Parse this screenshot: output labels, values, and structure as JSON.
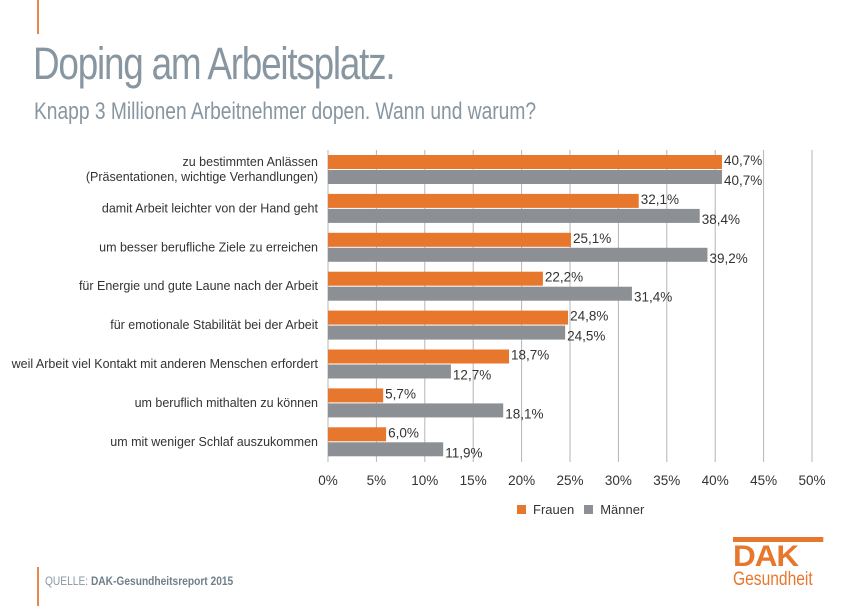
{
  "title": "Doping am Arbeitsplatz.",
  "subtitle": "Knapp 3 Millionen Arbeitnehmer dopen. Wann und warum?",
  "source_label": "QUELLE:",
  "source_text": "DAK-Gesundheitsreport 2015",
  "logo": {
    "top": "DAK",
    "bottom": "Gesundheit"
  },
  "colors": {
    "frauen": "#E8772E",
    "maenner": "#8C9095",
    "title": "#8796A1"
  },
  "chart_data": {
    "type": "bar",
    "orientation": "horizontal",
    "categories": [
      [
        "zu bestimmten  Anlässen",
        "(Präsentationen, wichtige Verhandlungen)"
      ],
      [
        "damit Arbeit leichter von der Hand geht"
      ],
      [
        "um besser berufliche Ziele zu erreichen"
      ],
      [
        "für Energie und gute Laune nach der Arbeit"
      ],
      [
        "für emotionale Stabilität bei der Arbeit"
      ],
      [
        "weil Arbeit viel Kontakt mit anderen Menschen erfordert"
      ],
      [
        "um beruflich mithalten zu können"
      ],
      [
        "um mit weniger Schlaf auszukommen"
      ]
    ],
    "series": [
      {
        "name": "Frauen",
        "values": [
          40.7,
          32.1,
          25.1,
          22.2,
          24.8,
          18.7,
          5.7,
          6.0
        ],
        "labels": [
          "40,7%",
          "32,1%",
          "25,1%",
          "22,2%",
          "24,8%",
          "18,7%",
          "5,7%",
          "6,0%"
        ]
      },
      {
        "name": "Männer",
        "values": [
          40.7,
          38.4,
          39.2,
          31.4,
          24.5,
          12.7,
          18.1,
          11.9
        ],
        "labels": [
          "40,7%",
          "38,4%",
          "39,2%",
          "31,4%",
          "24,5%",
          "12,7%",
          "18,1%",
          "11,9%"
        ]
      }
    ],
    "xlim": [
      0,
      50
    ],
    "xticks": [
      "0%",
      "5%",
      "10%",
      "15%",
      "20%",
      "25%",
      "30%",
      "35%",
      "40%",
      "45%",
      "50%"
    ],
    "grid": true,
    "legend": "bottom"
  }
}
